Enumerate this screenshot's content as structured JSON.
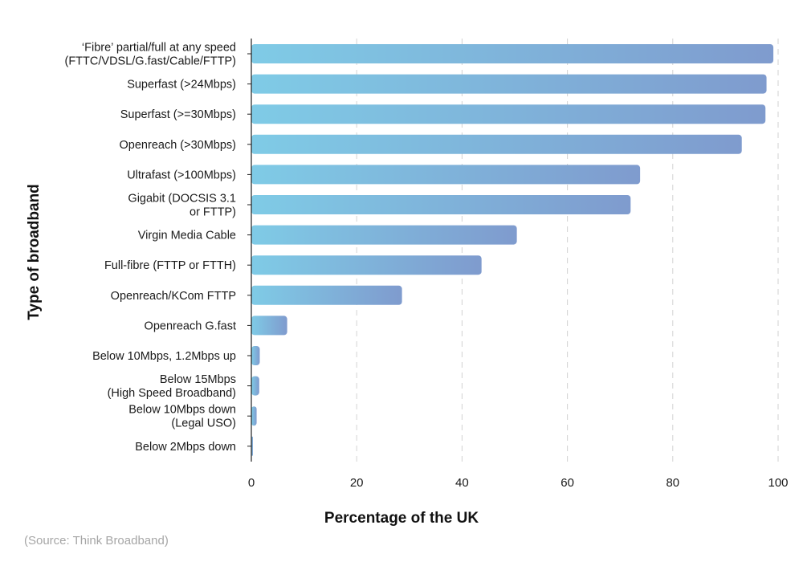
{
  "chart_data": {
    "type": "bar",
    "orientation": "horizontal",
    "categories": [
      [
        "‘Fibre’ partial/full at any speed",
        "(FTTC/VDSL/G.fast/Cable/FTTP)"
      ],
      [
        "Superfast (>24Mbps)"
      ],
      [
        "Superfast (>=30Mbps)"
      ],
      [
        "Openreach (>30Mbps)"
      ],
      [
        "Ultrafast (>100Mbps)"
      ],
      [
        "Gigabit (DOCSIS 3.1",
        "or FTTP)"
      ],
      [
        "Virgin Media Cable"
      ],
      [
        "Full-fibre (FTTP or FTTH)"
      ],
      [
        "Openreach/KCom FTTP"
      ],
      [
        "Openreach G.fast"
      ],
      [
        "Below 10Mbps, 1.2Mbps up"
      ],
      [
        "Below 15Mbps",
        "(High Speed Broadband)"
      ],
      [
        "Below 10Mbps down",
        "(Legal USO)"
      ],
      [
        "Below 2Mbps down"
      ]
    ],
    "values": [
      99.1,
      97.8,
      97.6,
      93.1,
      73.8,
      72.0,
      50.4,
      43.7,
      28.6,
      6.8,
      1.6,
      1.5,
      1.0,
      0.3
    ],
    "xlim": [
      0,
      100
    ],
    "xticks": [
      0,
      20,
      40,
      60,
      80,
      100
    ],
    "xlabel": "Percentage of the UK",
    "ylabel": "Type of broadband",
    "grid": "vertical dashed",
    "colors": {
      "bar_start": "#7fcbe6",
      "bar_end": "#7f9bce",
      "grid": "#d2d2d2",
      "axis": "#222222"
    }
  },
  "source": "(Source: Think Broadband)"
}
